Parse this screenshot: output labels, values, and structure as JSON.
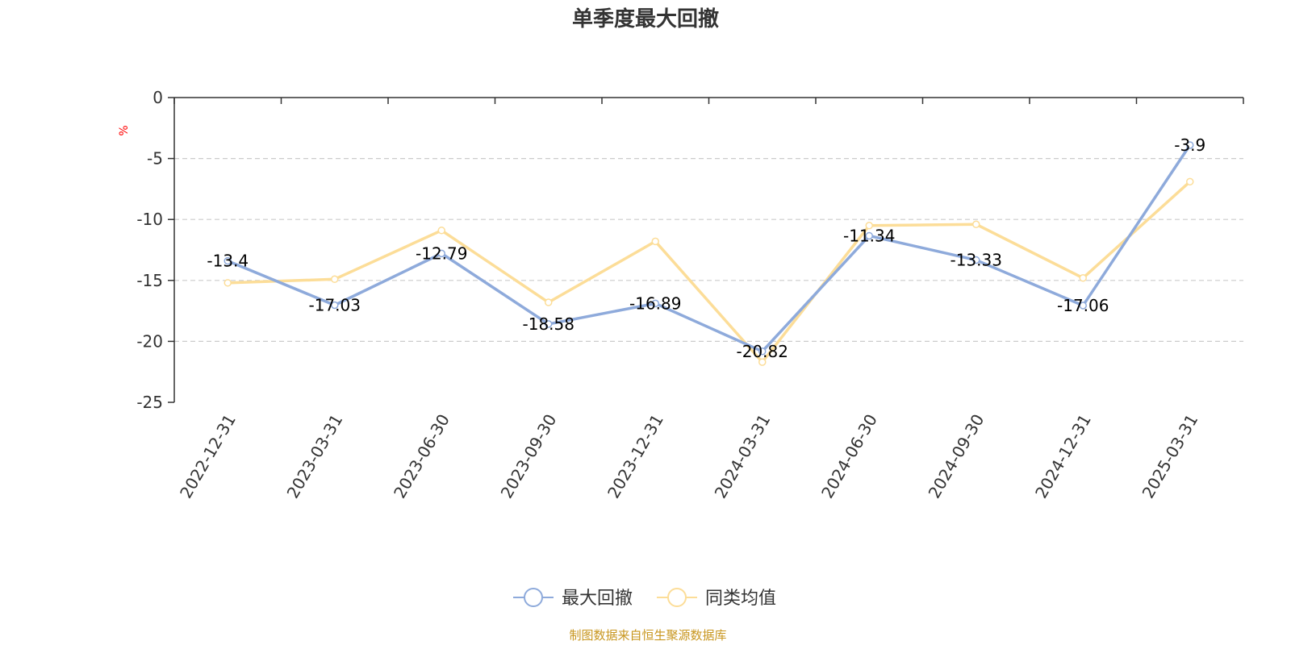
{
  "chart_data": {
    "type": "line",
    "title": "单季度最大回撤",
    "ylabel": "%",
    "categories": [
      "2022-12-31",
      "2023-03-31",
      "2023-06-30",
      "2023-09-30",
      "2023-12-31",
      "2024-03-31",
      "2024-06-30",
      "2024-09-30",
      "2024-12-31",
      "2025-03-31"
    ],
    "series": [
      {
        "name": "最大回撤",
        "color": "#8eaadb",
        "values": [
          -13.4,
          -17.03,
          -12.79,
          -18.58,
          -16.89,
          -20.82,
          -11.34,
          -13.33,
          -17.06,
          -3.9
        ],
        "data_labels": [
          "-13.4",
          "-17.03",
          "-12.79",
          "-18.58",
          "-16.89",
          "-20.82",
          "-11.34",
          "-13.33",
          "-17.06",
          "-3.9"
        ]
      },
      {
        "name": "同类均值",
        "color": "#fcdd98",
        "values": [
          -15.2,
          -14.9,
          -10.9,
          -16.8,
          -11.8,
          -21.7,
          -10.5,
          -10.4,
          -14.8,
          -6.9
        ]
      }
    ],
    "ylim": [
      -25,
      0
    ],
    "yticks": [
      "0",
      "-5",
      "-10",
      "-15",
      "-20",
      "-25"
    ],
    "ytick_values": [
      0,
      -5,
      -10,
      -15,
      -20,
      -25
    ],
    "grid": true,
    "legend_position": "bottom-center",
    "source": "制图数据来自恒生聚源数据库"
  }
}
